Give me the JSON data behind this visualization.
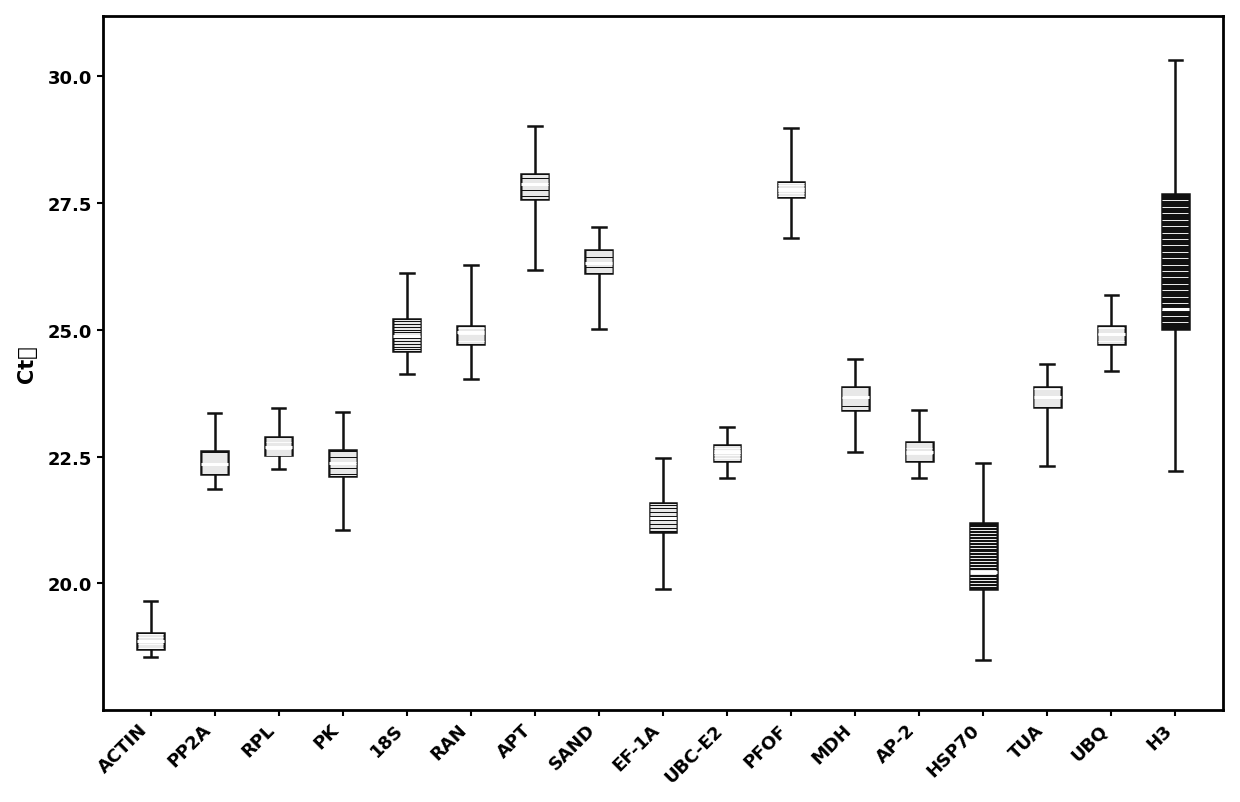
{
  "categories": [
    "ACTIN",
    "PP2A",
    "RPL",
    "PK",
    "18S",
    "RAN",
    "APT",
    "SAND",
    "EF-1A",
    "UBC-E2",
    "PFOF",
    "MDH",
    "AP-2",
    "HSP70",
    "TUA",
    "UBQ",
    "H3"
  ],
  "boxes": [
    {
      "whisker_low": 18.55,
      "q1": 18.7,
      "median": 18.85,
      "q3": 19.02,
      "whisker_high": 19.65
    },
    {
      "whisker_low": 21.85,
      "q1": 22.15,
      "median": 22.35,
      "q3": 22.6,
      "whisker_high": 23.35
    },
    {
      "whisker_low": 22.25,
      "q1": 22.52,
      "median": 22.68,
      "q3": 22.88,
      "whisker_high": 23.45
    },
    {
      "whisker_low": 21.05,
      "q1": 22.12,
      "median": 22.38,
      "q3": 22.62,
      "whisker_high": 23.38
    },
    {
      "whisker_low": 24.12,
      "q1": 24.58,
      "median": 24.88,
      "q3": 25.22,
      "whisker_high": 26.12
    },
    {
      "whisker_low": 24.02,
      "q1": 24.72,
      "median": 24.95,
      "q3": 25.08,
      "whisker_high": 26.28
    },
    {
      "whisker_low": 26.18,
      "q1": 27.58,
      "median": 27.88,
      "q3": 28.08,
      "whisker_high": 29.02
    },
    {
      "whisker_low": 25.02,
      "q1": 26.12,
      "median": 26.32,
      "q3": 26.58,
      "whisker_high": 27.02
    },
    {
      "whisker_low": 19.88,
      "q1": 21.02,
      "median": 21.28,
      "q3": 21.58,
      "whisker_high": 22.48
    },
    {
      "whisker_low": 22.08,
      "q1": 22.42,
      "median": 22.58,
      "q3": 22.72,
      "whisker_high": 23.08
    },
    {
      "whisker_low": 26.82,
      "q1": 27.62,
      "median": 27.78,
      "q3": 27.92,
      "whisker_high": 28.98
    },
    {
      "whisker_low": 22.58,
      "q1": 23.42,
      "median": 23.68,
      "q3": 23.88,
      "whisker_high": 24.42
    },
    {
      "whisker_low": 22.08,
      "q1": 22.42,
      "median": 22.58,
      "q3": 22.78,
      "whisker_high": 23.42
    },
    {
      "whisker_low": 18.48,
      "q1": 19.88,
      "median": 20.22,
      "q3": 21.18,
      "whisker_high": 22.38
    },
    {
      "whisker_low": 22.32,
      "q1": 23.48,
      "median": 23.68,
      "q3": 23.88,
      "whisker_high": 24.32
    },
    {
      "whisker_low": 24.18,
      "q1": 24.72,
      "median": 24.92,
      "q3": 25.08,
      "whisker_high": 25.68
    },
    {
      "whisker_low": 22.22,
      "q1": 25.02,
      "median": 25.42,
      "q3": 27.68,
      "whisker_high": 30.32
    }
  ],
  "ylabel": "Ct値",
  "ylim": [
    17.5,
    31.2
  ],
  "yticks": [
    20.0,
    22.5,
    25.0,
    27.5,
    30.0
  ],
  "ytick_labels": [
    "20.0",
    "22.5",
    "25.0",
    "27.5",
    "30.0"
  ],
  "box_facecolor": "#111111",
  "box_edgecolor": "#111111",
  "median_color": "#ffffff",
  "whisker_color": "#111111",
  "box_width": 0.42,
  "linewidth": 1.8,
  "n_hatch_lines": 20,
  "background_color": "#ffffff",
  "font_family": "DejaVu Sans",
  "tick_fontsize": 13,
  "ylabel_fontsize": 15,
  "spine_linewidth": 2.0
}
